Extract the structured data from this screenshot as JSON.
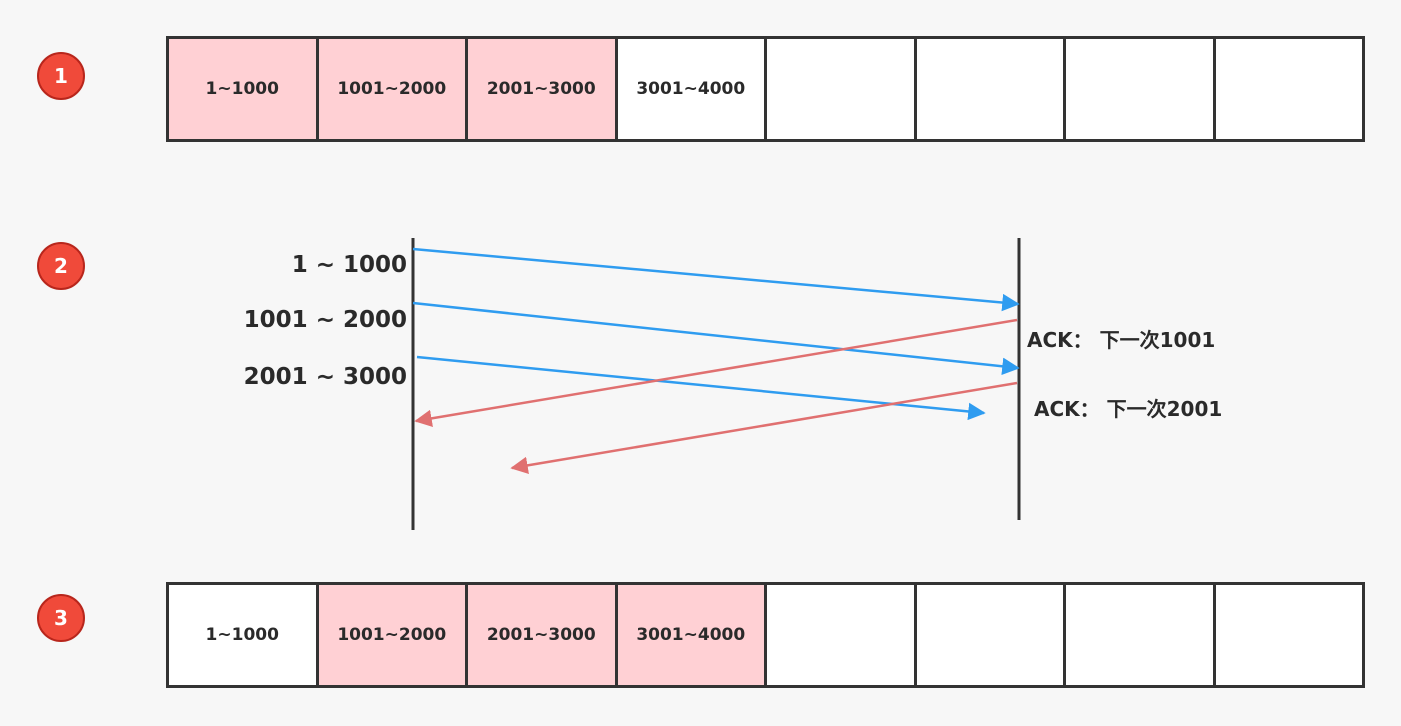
{
  "steps": [
    "1",
    "2",
    "3"
  ],
  "buffer1": {
    "cells": [
      {
        "label": "1~1000",
        "highlighted": true
      },
      {
        "label": "1001~2000",
        "highlighted": true
      },
      {
        "label": "2001~3000",
        "highlighted": true
      },
      {
        "label": "3001~4000",
        "highlighted": false
      },
      {
        "label": "",
        "highlighted": false
      },
      {
        "label": "",
        "highlighted": false
      },
      {
        "label": "",
        "highlighted": false
      },
      {
        "label": "",
        "highlighted": false
      }
    ]
  },
  "buffer3": {
    "cells": [
      {
        "label": "1~1000",
        "highlighted": false
      },
      {
        "label": "1001~2000",
        "highlighted": true
      },
      {
        "label": "2001~3000",
        "highlighted": true
      },
      {
        "label": "3001~4000",
        "highlighted": true
      },
      {
        "label": "",
        "highlighted": false
      },
      {
        "label": "",
        "highlighted": false
      },
      {
        "label": "",
        "highlighted": false
      },
      {
        "label": "",
        "highlighted": false
      }
    ]
  },
  "sequence": {
    "segments": [
      "1 ~ 1000",
      "1001 ~ 2000",
      "2001 ~ 3000"
    ],
    "acks": [
      "ACK： 下一次1001",
      "ACK： 下一次2001"
    ]
  },
  "colors": {
    "highlight": "#ffd0d4",
    "data_arrow": "#2f9cf0",
    "ack_arrow": "#e07070",
    "badge": "#f04a3a"
  }
}
